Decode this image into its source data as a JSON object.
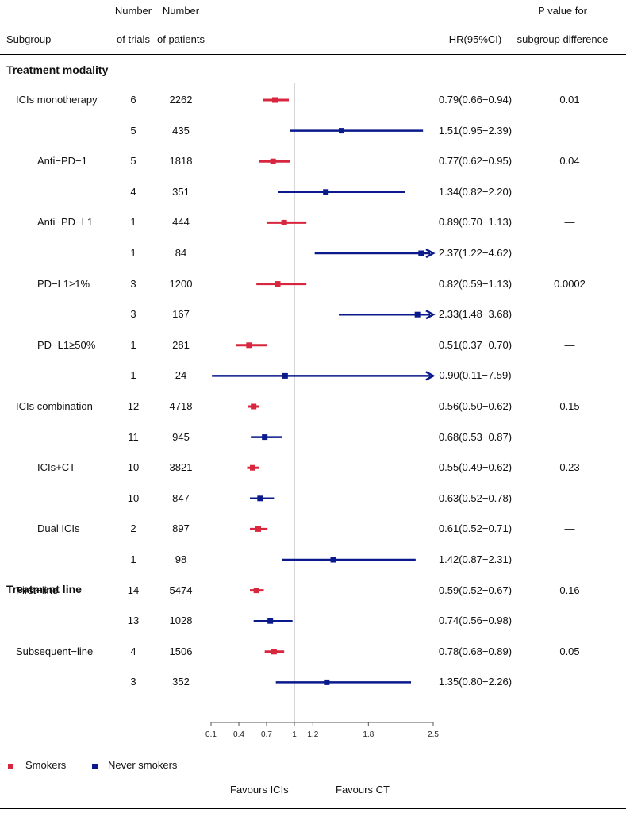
{
  "header": {
    "subgroup": "Subgroup",
    "trials_line1": "Number",
    "trials_line2": "of trials",
    "patients_line1": "Number",
    "patients_line2": "of patients",
    "hr": "HR(95%CI)",
    "p_line1": "P value for",
    "p_line2": "subgroup difference"
  },
  "sections": [
    "Treatment modality",
    "Treatment line"
  ],
  "colors": {
    "smokers": "#d7263d",
    "never": "#0a1a8c",
    "refline": "#c8c8c8"
  },
  "legend": {
    "smokers": "Smokers",
    "never": "Never smokers"
  },
  "favours": {
    "left": "Favours ICIs",
    "right": "Favours CT"
  },
  "chart_data": {
    "type": "forest",
    "xlabel": "",
    "xlim": [
      0.1,
      2.5
    ],
    "reference": 1,
    "x_ticks": [
      "0.1",
      "0.4",
      "0.7",
      "1",
      "1.2",
      "1.8",
      "2.5"
    ],
    "series": [
      {
        "name": "Smokers"
      },
      {
        "name": "Never smokers"
      }
    ],
    "rows": [
      {
        "label": "ICIs monotherapy",
        "indent": 1,
        "trials": "6",
        "patients": "2262",
        "hr": 0.79,
        "lo": 0.66,
        "hi": 0.94,
        "text": "0.79(0.66−0.94)",
        "p": "0.01",
        "series": "smokers"
      },
      {
        "label": "",
        "indent": 1,
        "trials": "5",
        "patients": "435",
        "hr": 1.51,
        "lo": 0.95,
        "hi": 2.39,
        "text": "1.51(0.95−2.39)",
        "p": "",
        "series": "never"
      },
      {
        "label": "Anti−PD−1",
        "indent": 2,
        "trials": "5",
        "patients": "1818",
        "hr": 0.77,
        "lo": 0.62,
        "hi": 0.95,
        "text": "0.77(0.62−0.95)",
        "p": "0.04",
        "series": "smokers"
      },
      {
        "label": "",
        "indent": 2,
        "trials": "4",
        "patients": "351",
        "hr": 1.34,
        "lo": 0.82,
        "hi": 2.2,
        "text": "1.34(0.82−2.20)",
        "p": "",
        "series": "never"
      },
      {
        "label": "Anti−PD−L1",
        "indent": 2,
        "trials": "1",
        "patients": "444",
        "hr": 0.89,
        "lo": 0.7,
        "hi": 1.13,
        "text": "0.89(0.70−1.13)",
        "p": "—",
        "series": "smokers"
      },
      {
        "label": "",
        "indent": 2,
        "trials": "1",
        "patients": "84",
        "hr": 2.37,
        "lo": 1.22,
        "hi": 4.62,
        "text": "2.37(1.22−4.62)",
        "p": "",
        "series": "never"
      },
      {
        "label": "PD−L1≥1%",
        "indent": 2,
        "trials": "3",
        "patients": "1200",
        "hr": 0.82,
        "lo": 0.59,
        "hi": 1.13,
        "text": "0.82(0.59−1.13)",
        "p": "0.0002",
        "series": "smokers"
      },
      {
        "label": "",
        "indent": 2,
        "trials": "3",
        "patients": "167",
        "hr": 2.33,
        "lo": 1.48,
        "hi": 3.68,
        "text": "2.33(1.48−3.68)",
        "p": "",
        "series": "never"
      },
      {
        "label": "PD−L1≥50%",
        "indent": 2,
        "trials": "1",
        "patients": "281",
        "hr": 0.51,
        "lo": 0.37,
        "hi": 0.7,
        "text": "0.51(0.37−0.70)",
        "p": "—",
        "series": "smokers"
      },
      {
        "label": "",
        "indent": 2,
        "trials": "1",
        "patients": "24",
        "hr": 0.9,
        "lo": 0.11,
        "hi": 7.59,
        "text": "0.90(0.11−7.59)",
        "p": "",
        "series": "never"
      },
      {
        "label": "ICIs combination",
        "indent": 1,
        "trials": "12",
        "patients": "4718",
        "hr": 0.56,
        "lo": 0.5,
        "hi": 0.62,
        "text": "0.56(0.50−0.62)",
        "p": "0.15",
        "series": "smokers"
      },
      {
        "label": "",
        "indent": 1,
        "trials": "11",
        "patients": "945",
        "hr": 0.68,
        "lo": 0.53,
        "hi": 0.87,
        "text": "0.68(0.53−0.87)",
        "p": "",
        "series": "never"
      },
      {
        "label": "ICIs+CT",
        "indent": 2,
        "trials": "10",
        "patients": "3821",
        "hr": 0.55,
        "lo": 0.49,
        "hi": 0.62,
        "text": "0.55(0.49−0.62)",
        "p": "0.23",
        "series": "smokers"
      },
      {
        "label": "",
        "indent": 2,
        "trials": "10",
        "patients": "847",
        "hr": 0.63,
        "lo": 0.52,
        "hi": 0.78,
        "text": "0.63(0.52−0.78)",
        "p": "",
        "series": "never"
      },
      {
        "label": "Dual ICIs",
        "indent": 2,
        "trials": "2",
        "patients": "897",
        "hr": 0.61,
        "lo": 0.52,
        "hi": 0.71,
        "text": "0.61(0.52−0.71)",
        "p": "—",
        "series": "smokers"
      },
      {
        "label": "",
        "indent": 2,
        "trials": "1",
        "patients": "98",
        "hr": 1.42,
        "lo": 0.87,
        "hi": 2.31,
        "text": "1.42(0.87−2.31)",
        "p": "",
        "series": "never"
      },
      {
        "label": "First−line",
        "indent": 1,
        "trials": "14",
        "patients": "5474",
        "hr": 0.59,
        "lo": 0.52,
        "hi": 0.67,
        "text": "0.59(0.52−0.67)",
        "p": "0.16",
        "series": "smokers"
      },
      {
        "label": "",
        "indent": 1,
        "trials": "13",
        "patients": "1028",
        "hr": 0.74,
        "lo": 0.56,
        "hi": 0.98,
        "text": "0.74(0.56−0.98)",
        "p": "",
        "series": "never"
      },
      {
        "label": "Subsequent−line",
        "indent": 1,
        "trials": "4",
        "patients": "1506",
        "hr": 0.78,
        "lo": 0.68,
        "hi": 0.89,
        "text": "0.78(0.68−0.89)",
        "p": "0.05",
        "series": "smokers"
      },
      {
        "label": "",
        "indent": 1,
        "trials": "3",
        "patients": "352",
        "hr": 1.35,
        "lo": 0.8,
        "hi": 2.26,
        "text": "1.35(0.80−2.26)",
        "p": "",
        "series": "never"
      }
    ]
  }
}
